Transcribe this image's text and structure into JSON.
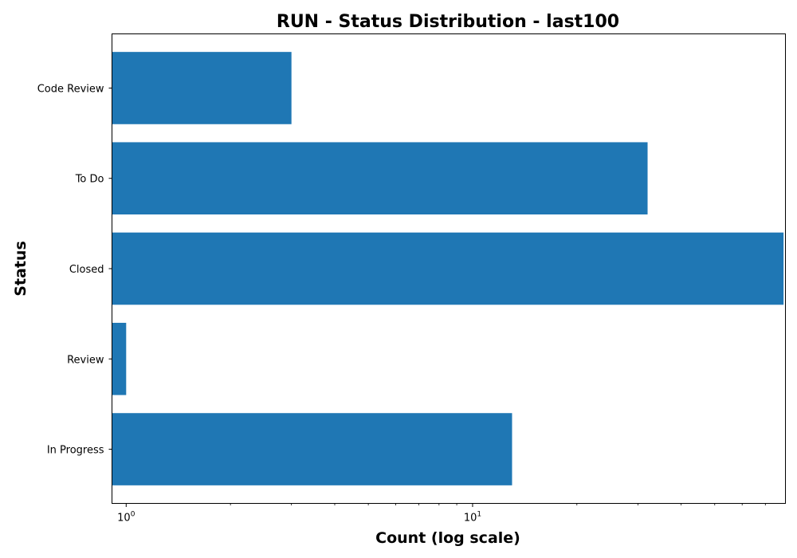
{
  "chart_data": {
    "type": "bar",
    "orientation": "horizontal",
    "title": "RUN - Status Distribution - last100",
    "xlabel": "Count (log scale)",
    "ylabel": "Status",
    "x_scale": "log",
    "xlim": [
      0.91,
      80
    ],
    "x_major_ticks": [
      {
        "base": "10",
        "exp": "0",
        "value": 1
      },
      {
        "base": "10",
        "exp": "1",
        "value": 10
      }
    ],
    "categories": [
      "Code Review",
      "To Do",
      "Closed",
      "Review",
      "In Progress"
    ],
    "values": [
      3,
      32,
      79,
      1,
      13
    ],
    "bar_color": "#1f77b4",
    "grid": false,
    "legend": "none"
  }
}
